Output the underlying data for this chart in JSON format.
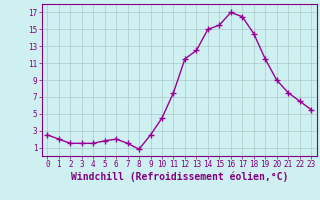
{
  "x": [
    0,
    1,
    2,
    3,
    4,
    5,
    6,
    7,
    8,
    9,
    10,
    11,
    12,
    13,
    14,
    15,
    16,
    17,
    18,
    19,
    20,
    21,
    22,
    23
  ],
  "y": [
    2.5,
    2.0,
    1.5,
    1.5,
    1.5,
    1.8,
    2.0,
    1.5,
    0.8,
    2.5,
    4.5,
    7.5,
    11.5,
    12.5,
    15.0,
    15.5,
    17.0,
    16.5,
    14.5,
    11.5,
    9.0,
    7.5,
    6.5,
    5.5
  ],
  "line_color": "#990099",
  "marker": "+",
  "marker_size": 4,
  "bg_color": "#cff0f0",
  "grid_color": "#aac8c8",
  "xlabel": "Windchill (Refroidissement éolien,°C)",
  "xlabel_fontsize": 7,
  "xtick_labels": [
    "0",
    "1",
    "2",
    "3",
    "4",
    "5",
    "6",
    "7",
    "8",
    "9",
    "10",
    "11",
    "12",
    "13",
    "14",
    "15",
    "16",
    "17",
    "18",
    "19",
    "20",
    "21",
    "22",
    "23"
  ],
  "ytick_labels": [
    "1",
    "3",
    "5",
    "7",
    "9",
    "11",
    "13",
    "15",
    "17"
  ],
  "yticks": [
    1,
    3,
    5,
    7,
    9,
    11,
    13,
    15,
    17
  ],
  "ylim": [
    0,
    18
  ],
  "xlim": [
    -0.5,
    23.5
  ],
  "tick_color": "#800080",
  "tick_fontsize": 5.5,
  "linewidth": 1.0,
  "marker_linewidth": 1.0
}
